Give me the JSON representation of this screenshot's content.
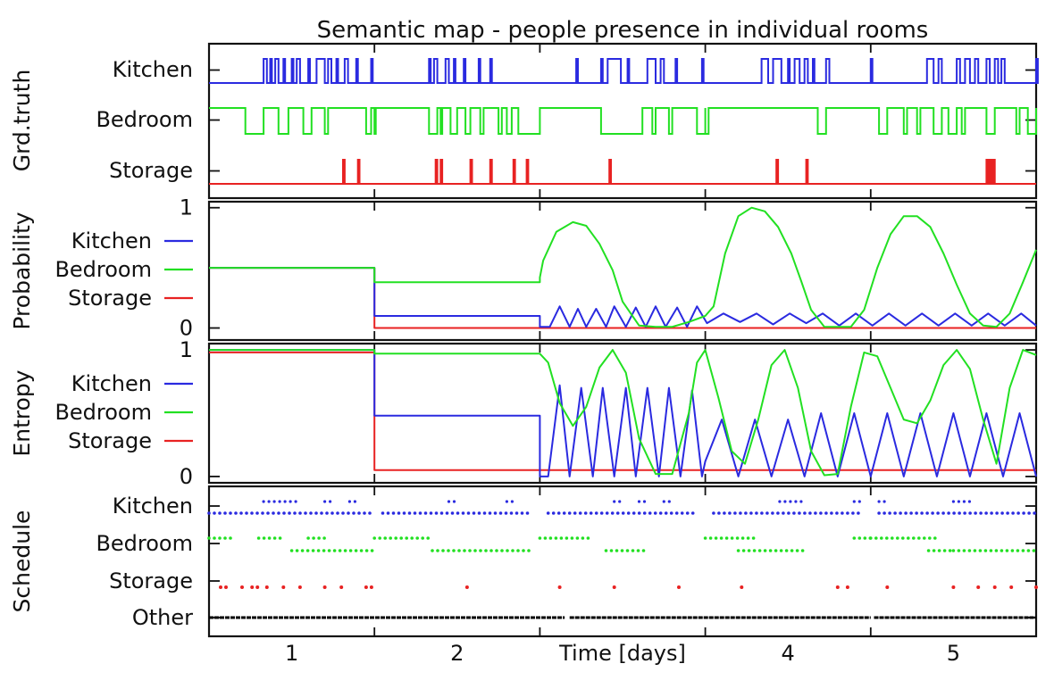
{
  "title": "Semantic map - people presence in individual rooms",
  "colors": {
    "Kitchen": "#2a2ae0",
    "Bedroom": "#22e022",
    "Storage": "#e82222",
    "Other": "#000000"
  },
  "chart_data": [
    {
      "type": "event",
      "ylabel": "Grd.truth",
      "rows": [
        "Kitchen",
        "Bedroom",
        "Storage"
      ],
      "xlim": [
        0.5,
        5.5
      ],
      "baseline_state": {
        "Kitchen": "absent",
        "Bedroom": "present",
        "Storage": "absent"
      },
      "events": {
        "Kitchen": [
          [
            0.83,
            0.85
          ],
          [
            0.87,
            0.88
          ],
          [
            0.9,
            0.92
          ],
          [
            0.95,
            0.96
          ],
          [
            1.0,
            1.01
          ],
          [
            1.03,
            1.05
          ],
          [
            1.1,
            1.11
          ],
          [
            1.15,
            1.2
          ],
          [
            1.22,
            1.24
          ],
          [
            1.27,
            1.28
          ],
          [
            1.32,
            1.34
          ],
          [
            1.39,
            1.4
          ],
          [
            1.48,
            1.49
          ],
          [
            1.83,
            1.84
          ],
          [
            1.86,
            1.88
          ],
          [
            1.93,
            1.95
          ],
          [
            1.98,
            1.99
          ],
          [
            2.04,
            2.05
          ],
          [
            2.13,
            2.14
          ],
          [
            2.2,
            2.21
          ],
          [
            2.72,
            2.73
          ],
          [
            2.87,
            2.88
          ],
          [
            2.91,
            2.99
          ],
          [
            3.03,
            3.04
          ],
          [
            3.15,
            3.2
          ],
          [
            3.23,
            3.25
          ],
          [
            3.32,
            3.33
          ],
          [
            3.48,
            3.49
          ],
          [
            3.84,
            3.88
          ],
          [
            3.91,
            3.96
          ],
          [
            4.0,
            4.01
          ],
          [
            4.04,
            4.07
          ],
          [
            4.1,
            4.12
          ],
          [
            4.15,
            4.16
          ],
          [
            4.23,
            4.25
          ],
          [
            4.5,
            4.51
          ],
          [
            4.84,
            4.88
          ],
          [
            4.91,
            4.93
          ],
          [
            5.02,
            5.04
          ],
          [
            5.07,
            5.1
          ],
          [
            5.13,
            5.15
          ],
          [
            5.2,
            5.22
          ],
          [
            5.25,
            5.27
          ],
          [
            5.29,
            5.31
          ],
          [
            5.5,
            5.51
          ]
        ],
        "Bedroom": [
          [
            0.72,
            0.83
          ],
          [
            0.92,
            0.98
          ],
          [
            1.07,
            1.12
          ],
          [
            1.2,
            1.22
          ],
          [
            1.45,
            1.48
          ],
          [
            1.5,
            1.5
          ],
          [
            1.83,
            1.88
          ],
          [
            1.9,
            1.91
          ],
          [
            1.96,
            2.0
          ],
          [
            2.05,
            2.08
          ],
          [
            2.14,
            2.16
          ],
          [
            2.25,
            2.27
          ],
          [
            2.3,
            2.33
          ],
          [
            2.37,
            2.5
          ],
          [
            2.87,
            3.12
          ],
          [
            3.18,
            3.2
          ],
          [
            3.28,
            3.3
          ],
          [
            3.45,
            3.5
          ],
          [
            3.5,
            3.52
          ],
          [
            4.18,
            4.23
          ],
          [
            4.55,
            4.6
          ],
          [
            4.7,
            4.72
          ],
          [
            4.78,
            4.8
          ],
          [
            4.88,
            4.93
          ],
          [
            4.97,
            5.02
          ],
          [
            5.05,
            5.07
          ],
          [
            5.2,
            5.25
          ],
          [
            5.38,
            5.4
          ],
          [
            5.45,
            5.5
          ]
        ],
        "Storage": [
          [
            1.31,
            1.32
          ],
          [
            1.4,
            1.41
          ],
          [
            1.87,
            1.88
          ],
          [
            1.9,
            1.91
          ],
          [
            2.08,
            2.09
          ],
          [
            2.2,
            2.21
          ],
          [
            2.34,
            2.35
          ],
          [
            2.42,
            2.43
          ],
          [
            2.92,
            2.93
          ],
          [
            3.93,
            3.94
          ],
          [
            4.11,
            4.12
          ],
          [
            5.2,
            5.21
          ],
          [
            5.22,
            5.23
          ],
          [
            5.24,
            5.25
          ]
        ]
      }
    },
    {
      "type": "line",
      "ylabel": "Probability",
      "yticks": [
        "0",
        "1"
      ],
      "ylim": [
        -0.1,
        1.05
      ],
      "xlim": [
        0.5,
        5.5
      ],
      "legend": [
        "Kitchen",
        "Bedroom",
        "Storage"
      ],
      "series": [
        {
          "name": "Kitchen",
          "x": [
            0.5,
            1.5,
            1.5,
            2.5,
            2.5,
            2.56,
            2.62,
            2.68,
            2.73,
            2.78,
            2.84,
            2.9,
            2.95,
            3.02,
            3.08,
            3.14,
            3.2,
            3.26,
            3.33,
            3.39,
            3.45,
            3.51,
            3.61,
            3.71,
            3.81,
            3.91,
            4.01,
            4.11,
            4.21,
            4.31,
            4.41,
            4.51,
            4.61,
            4.71,
            4.81,
            4.91,
            5.01,
            5.11,
            5.21,
            5.31,
            5.41,
            5.5
          ],
          "y": [
            0.5,
            0.5,
            0.1,
            0.1,
            0.01,
            0.01,
            0.18,
            0.01,
            0.16,
            0.01,
            0.16,
            0.01,
            0.18,
            0.01,
            0.17,
            0.01,
            0.18,
            0.01,
            0.17,
            0.01,
            0.18,
            0.04,
            0.12,
            0.05,
            0.12,
            0.03,
            0.12,
            0.04,
            0.12,
            0.02,
            0.12,
            0.02,
            0.12,
            0.02,
            0.12,
            0.02,
            0.12,
            0.02,
            0.12,
            0.02,
            0.12,
            0.02
          ]
        },
        {
          "name": "Bedroom",
          "x": [
            0.5,
            1.5,
            1.5,
            2.5,
            2.5,
            2.52,
            2.6,
            2.7,
            2.78,
            2.86,
            2.94,
            3.0,
            3.1,
            3.2,
            3.3,
            3.4,
            3.5,
            3.55,
            3.62,
            3.7,
            3.78,
            3.86,
            3.94,
            4.02,
            4.08,
            4.14,
            4.22,
            4.3,
            4.38,
            4.46,
            4.54,
            4.62,
            4.7,
            4.78,
            4.86,
            4.94,
            5.02,
            5.1,
            5.18,
            5.26,
            5.34,
            5.42,
            5.5
          ],
          "y": [
            0.5,
            0.5,
            0.38,
            0.38,
            0.42,
            0.56,
            0.8,
            0.88,
            0.85,
            0.7,
            0.48,
            0.22,
            0.02,
            0.01,
            0.01,
            0.05,
            0.1,
            0.18,
            0.62,
            0.93,
            1.0,
            0.97,
            0.84,
            0.62,
            0.39,
            0.15,
            0.01,
            0.01,
            0.01,
            0.15,
            0.5,
            0.78,
            0.93,
            0.93,
            0.84,
            0.62,
            0.36,
            0.12,
            0.02,
            0.01,
            0.12,
            0.38,
            0.65
          ]
        },
        {
          "name": "Storage",
          "x": [
            0.5,
            1.5,
            1.5,
            5.5
          ],
          "y": [
            0.5,
            0.5,
            0.0,
            0.0
          ]
        }
      ]
    },
    {
      "type": "line",
      "ylabel": "Entropy",
      "yticks": [
        "0",
        "1"
      ],
      "ylim": [
        -0.05,
        1.05
      ],
      "xlim": [
        0.5,
        5.5
      ],
      "legend": [
        "Kitchen",
        "Bedroom",
        "Storage"
      ],
      "series": [
        {
          "name": "Kitchen",
          "x": [
            0.5,
            1.5,
            1.5,
            2.5,
            2.5,
            2.55,
            2.62,
            2.68,
            2.75,
            2.82,
            2.88,
            2.95,
            3.02,
            3.08,
            3.15,
            3.22,
            3.28,
            3.35,
            3.42,
            3.48,
            3.5,
            3.6,
            3.7,
            3.8,
            3.9,
            4.0,
            4.1,
            4.2,
            4.3,
            4.4,
            4.5,
            4.6,
            4.7,
            4.8,
            4.9,
            5.0,
            5.1,
            5.2,
            5.3,
            5.4,
            5.5
          ],
          "y": [
            1.0,
            1.0,
            0.48,
            0.48,
            0.0,
            0.0,
            0.72,
            0.0,
            0.7,
            0.0,
            0.7,
            0.0,
            0.7,
            0.0,
            0.7,
            0.0,
            0.7,
            0.0,
            0.68,
            0.0,
            0.12,
            0.45,
            0.0,
            0.45,
            0.0,
            0.45,
            0.0,
            0.5,
            0.0,
            0.5,
            0.0,
            0.5,
            0.0,
            0.5,
            0.0,
            0.5,
            0.0,
            0.5,
            0.0,
            0.5,
            0.0
          ]
        },
        {
          "name": "Bedroom",
          "x": [
            0.5,
            1.5,
            1.5,
            2.5,
            2.55,
            2.62,
            2.7,
            2.78,
            2.86,
            2.94,
            3.02,
            3.1,
            3.2,
            3.3,
            3.4,
            3.45,
            3.5,
            3.58,
            3.66,
            3.74,
            3.82,
            3.9,
            3.98,
            4.06,
            4.14,
            4.22,
            4.3,
            4.38,
            4.46,
            4.54,
            4.62,
            4.7,
            4.78,
            4.86,
            4.94,
            5.02,
            5.1,
            5.18,
            5.26,
            5.34,
            5.42,
            5.5
          ],
          "y": [
            1.0,
            1.0,
            0.97,
            0.97,
            0.9,
            0.58,
            0.4,
            0.55,
            0.86,
            1.0,
            0.82,
            0.3,
            0.02,
            0.02,
            0.5,
            0.9,
            1.0,
            0.62,
            0.2,
            0.1,
            0.45,
            0.88,
            1.0,
            0.7,
            0.2,
            0.01,
            0.02,
            0.55,
            0.98,
            0.95,
            0.7,
            0.45,
            0.42,
            0.6,
            0.88,
            1.0,
            0.85,
            0.45,
            0.1,
            0.7,
            1.0,
            0.96
          ]
        },
        {
          "name": "Storage",
          "x": [
            0.5,
            1.5,
            1.5,
            5.5
          ],
          "y": [
            0.98,
            0.98,
            0.05,
            0.05
          ]
        }
      ]
    },
    {
      "type": "scatter",
      "ylabel": "Schedule",
      "rows": [
        "Kitchen",
        "Bedroom",
        "Storage",
        "Other"
      ],
      "xlim": [
        0.5,
        5.5
      ],
      "note": "dots at discrete schedule times; two sub-rows per room",
      "points": {
        "Kitchen": {
          "upper": [
            [
              0.83,
              1.05
            ],
            [
              1.2,
              1.25
            ],
            [
              1.35,
              1.4
            ],
            [
              1.95,
              2.0
            ],
            [
              2.3,
              2.35
            ],
            [
              2.95,
              3.0
            ],
            [
              3.1,
              3.15
            ],
            [
              3.25,
              3.3
            ],
            [
              3.95,
              4.1
            ],
            [
              4.4,
              4.45
            ],
            [
              4.55,
              4.6
            ],
            [
              5.0,
              5.1
            ]
          ],
          "lower": [
            [
              0.5,
              1.5
            ],
            [
              1.55,
              2.45
            ],
            [
              2.55,
              3.45
            ],
            [
              3.55,
              4.45
            ],
            [
              4.55,
              5.5
            ]
          ]
        },
        "Bedroom": {
          "upper": [
            [
              0.5,
              0.65
            ],
            [
              0.8,
              0.95
            ],
            [
              1.1,
              1.2
            ],
            [
              1.5,
              1.85
            ],
            [
              2.5,
              2.8
            ],
            [
              3.5,
              3.8
            ],
            [
              4.4,
              4.5
            ],
            [
              4.5,
              4.9
            ]
          ],
          "lower": [
            [
              1.0,
              1.5
            ],
            [
              1.85,
              2.45
            ],
            [
              2.9,
              3.15
            ],
            [
              3.7,
              4.1
            ],
            [
              4.85,
              5.0
            ],
            [
              5.0,
              5.5
            ]
          ]
        },
        "Storage": [
          [
            0.57,
            0.62
          ],
          [
            0.7,
            0.72
          ],
          [
            0.76,
            0.8
          ],
          [
            0.85,
            0.88
          ],
          [
            0.95,
            0.98
          ],
          [
            1.05,
            1.08
          ],
          [
            1.2,
            1.22
          ],
          [
            1.3,
            1.32
          ],
          [
            1.45,
            1.5
          ],
          [
            2.06,
            2.07
          ],
          [
            2.62,
            2.65
          ],
          [
            2.95,
            2.98
          ],
          [
            3.34,
            3.36
          ],
          [
            3.72,
            3.74
          ],
          [
            4.3,
            4.32
          ],
          [
            4.36,
            4.38
          ],
          [
            4.6,
            4.62
          ],
          [
            5.0,
            5.02
          ],
          [
            5.15,
            5.17
          ],
          [
            5.25,
            5.27
          ],
          [
            5.35,
            5.37
          ],
          [
            5.5,
            5.5
          ]
        ],
        "Other": [
          [
            0.5,
            2.65
          ],
          [
            2.68,
            4.5
          ],
          [
            4.52,
            5.5
          ]
        ]
      }
    }
  ],
  "x_axis": {
    "label": "Time [days]",
    "ticks": [
      "1",
      "2",
      "3",
      "4",
      "5"
    ],
    "tick_positions": [
      1,
      2,
      3,
      4,
      5
    ],
    "day_boundaries": [
      1.5,
      2.5,
      3.5,
      4.5
    ],
    "label_position": 3
  }
}
